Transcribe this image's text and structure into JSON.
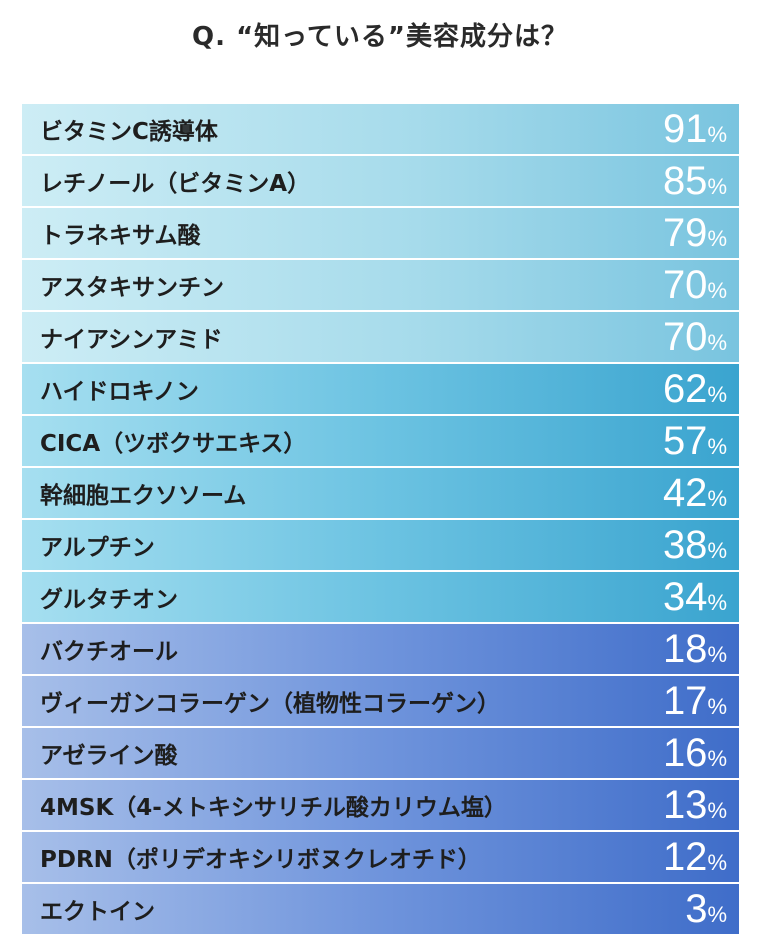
{
  "title": "Q. “知っている”美容成分は？",
  "chart_data": {
    "type": "bar",
    "categories": [
      "ビタミンC誘導体",
      "レチノール（ビタミンA）",
      "トラネキサム酸",
      "アスタキサンチン",
      "ナイアシンアミド",
      "ハイドロキノン",
      "CICA（ツボクサエキス）",
      "幹細胞エクソソーム",
      "アルプチン",
      "グルタチオン",
      "バクチオール",
      "ヴィーガンコラーゲン（植物性コラーゲン）",
      "アゼライン酸",
      "4MSK（4-メトキシサリチル酸カリウム塩）",
      "PDRN（ポリデオキシリボヌクレオチド）",
      "エクトイン"
    ],
    "values": [
      91,
      85,
      79,
      70,
      70,
      62,
      57,
      42,
      38,
      34,
      18,
      17,
      16,
      13,
      12,
      3
    ],
    "unit": "%",
    "groups": [
      {
        "rows": [
          0,
          4
        ],
        "color": "#a6dbeb"
      },
      {
        "rows": [
          5,
          9
        ],
        "color": "#4fb0d8"
      },
      {
        "rows": [
          10,
          15
        ],
        "color": "#5a86d3"
      }
    ]
  }
}
